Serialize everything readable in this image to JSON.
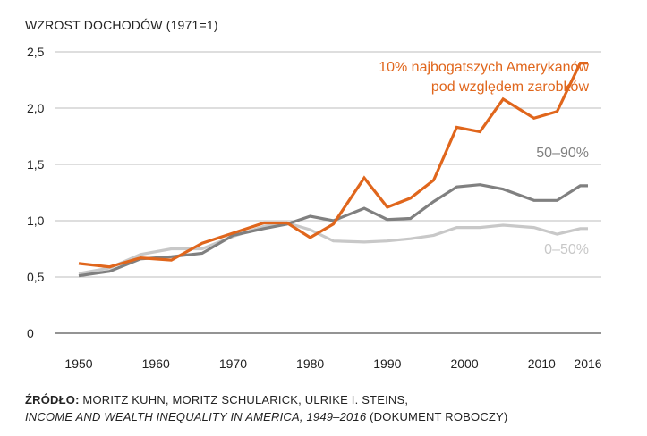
{
  "chart_data": {
    "type": "line",
    "ylabel": "WZROST DOCHODÓW (1971=1)",
    "ylim": [
      0,
      2.5
    ],
    "yticks": [
      "0",
      "0,5",
      "1,0",
      "1,5",
      "2,0",
      "2,5"
    ],
    "xlim": [
      1950,
      2016
    ],
    "xticks": [
      "1950",
      "1960",
      "1970",
      "1980",
      "1990",
      "2000",
      "2010",
      "2016"
    ],
    "grid": "horizontal",
    "series": [
      {
        "name": "0–50%",
        "color": "#c8c8c8",
        "x": [
          1950,
          1954,
          1958,
          1962,
          1966,
          1970,
          1974,
          1977,
          1980,
          1983,
          1987,
          1990,
          1993,
          1996,
          1999,
          2002,
          2005,
          2009,
          2012,
          2015,
          2016
        ],
        "values": [
          0.53,
          0.58,
          0.7,
          0.75,
          0.75,
          0.86,
          0.95,
          0.98,
          0.92,
          0.82,
          0.81,
          0.82,
          0.84,
          0.87,
          0.94,
          0.94,
          0.96,
          0.94,
          0.88,
          0.93,
          0.93
        ]
      },
      {
        "name": "50–90%",
        "color": "#808080",
        "x": [
          1950,
          1954,
          1958,
          1962,
          1966,
          1970,
          1974,
          1977,
          1980,
          1983,
          1987,
          1990,
          1993,
          1996,
          1999,
          2002,
          2005,
          2009,
          2012,
          2015,
          2016
        ],
        "values": [
          0.51,
          0.55,
          0.66,
          0.68,
          0.71,
          0.87,
          0.93,
          0.97,
          1.04,
          1.0,
          1.11,
          1.01,
          1.02,
          1.17,
          1.3,
          1.32,
          1.28,
          1.18,
          1.18,
          1.31,
          1.31
        ]
      },
      {
        "name": "10% najbogatszych Amerykanów pod względem zarobków",
        "color": "#e0661c",
        "x": [
          1950,
          1954,
          1958,
          1962,
          1966,
          1970,
          1974,
          1977,
          1980,
          1983,
          1987,
          1990,
          1993,
          1996,
          1999,
          2002,
          2005,
          2009,
          2012,
          2015,
          2016
        ],
        "values": [
          0.62,
          0.59,
          0.67,
          0.65,
          0.8,
          0.89,
          0.98,
          0.98,
          0.85,
          0.97,
          1.38,
          1.12,
          1.2,
          1.36,
          1.83,
          1.79,
          2.08,
          1.91,
          1.97,
          2.4,
          2.4
        ]
      }
    ],
    "annotations": {
      "top10_line1": "10% najbogatszych Amerykanów",
      "top10_line2": "pod względem zarobków",
      "mid40": "50–90%",
      "bottom50": "0–50%"
    }
  },
  "source": {
    "lead": "ŹRÓDŁO:",
    "authors": " MORITZ KUHN, MORITZ SCHULARICK, ULRIKE I. STEINS,",
    "title_italic": "INCOME AND WEALTH INEQUALITY IN AMERICA, 1949–2016",
    "suffix": " (DOKUMENT ROBOCZY)"
  }
}
